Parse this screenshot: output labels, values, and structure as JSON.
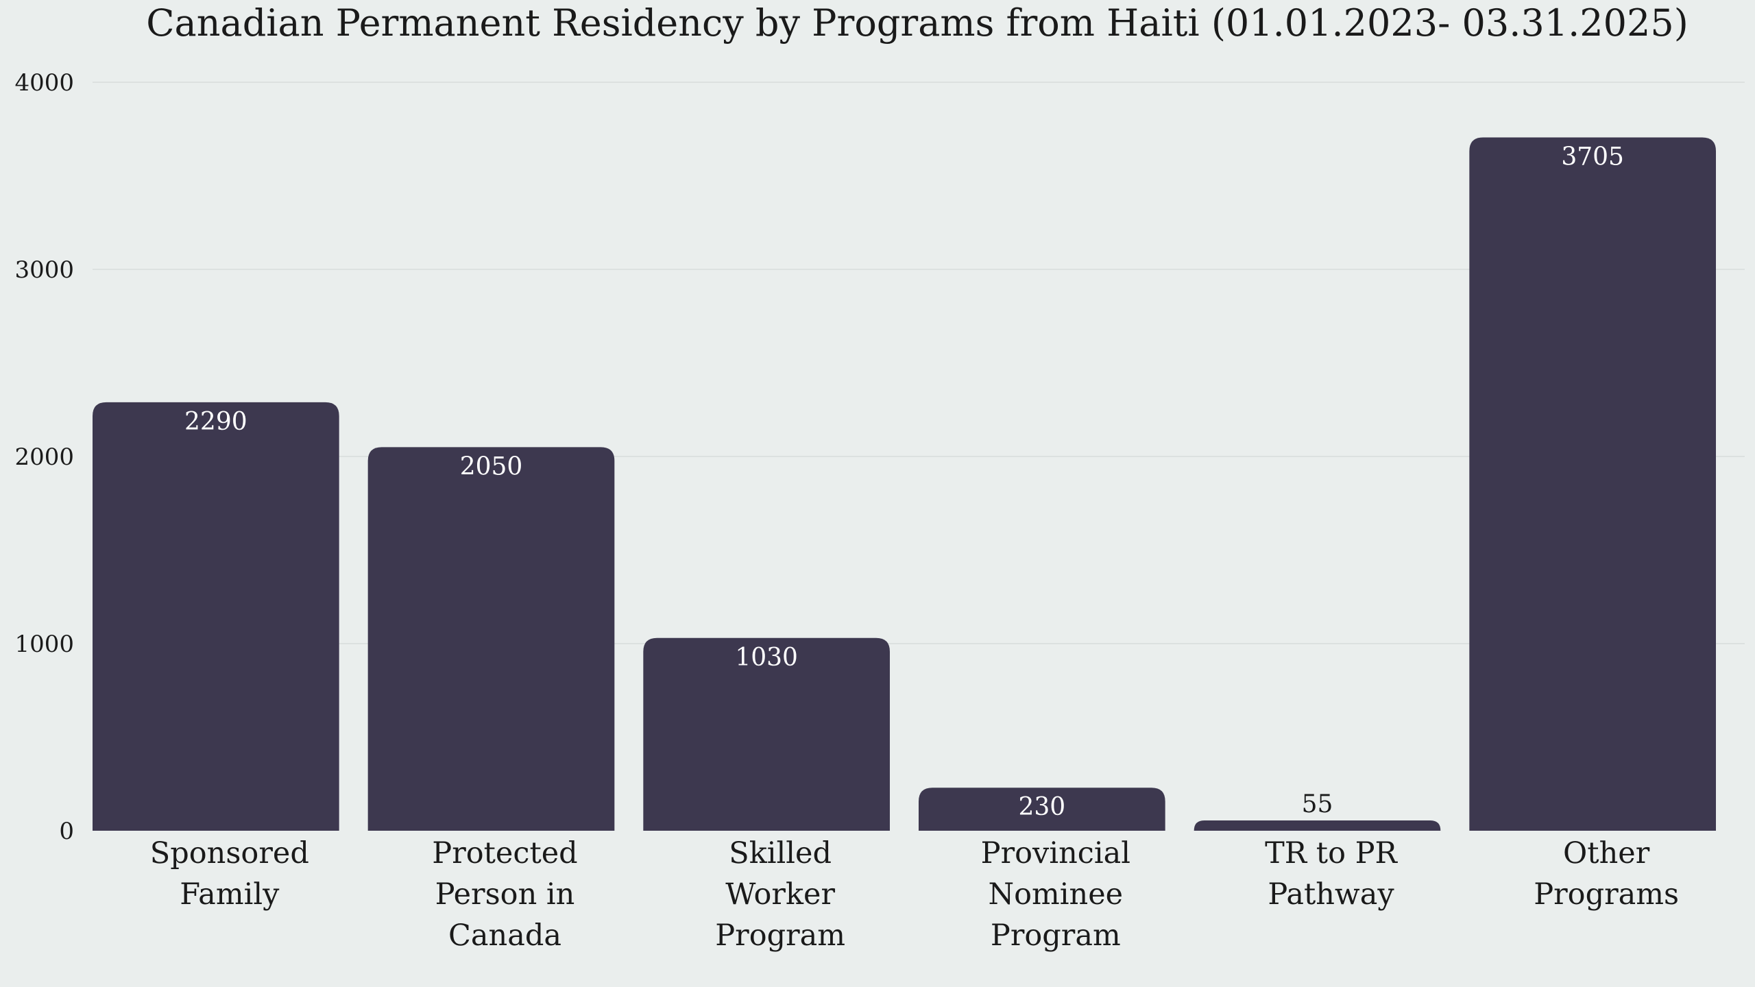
{
  "chart_data": {
    "type": "bar",
    "title": "Canadian Permanent Residency by Programs from Haiti (01.01.2023- 03.31.2025)",
    "xlabel": "",
    "ylabel": "",
    "categories": [
      [
        "Sponsored",
        "Family"
      ],
      [
        "Protected",
        "Person in",
        "Canada"
      ],
      [
        "Skilled",
        "Worker",
        "Program"
      ],
      [
        "Provincial",
        "Nominee",
        "Program"
      ],
      [
        "TR to PR",
        "Pathway"
      ],
      [
        "Other",
        "Programs"
      ]
    ],
    "values": [
      2290,
      2050,
      1030,
      230,
      55,
      3705
    ],
    "ylim": [
      0,
      4000
    ],
    "yticks": [
      0,
      1000,
      2000,
      3000,
      4000
    ],
    "grid": true,
    "legend": "none",
    "colors": {
      "bar": "#3D384F",
      "background": "#EAEEED",
      "grid": "#DCE1E0",
      "label_inside": "#FFFFFF",
      "label_outside": "#1a1a1a"
    }
  }
}
